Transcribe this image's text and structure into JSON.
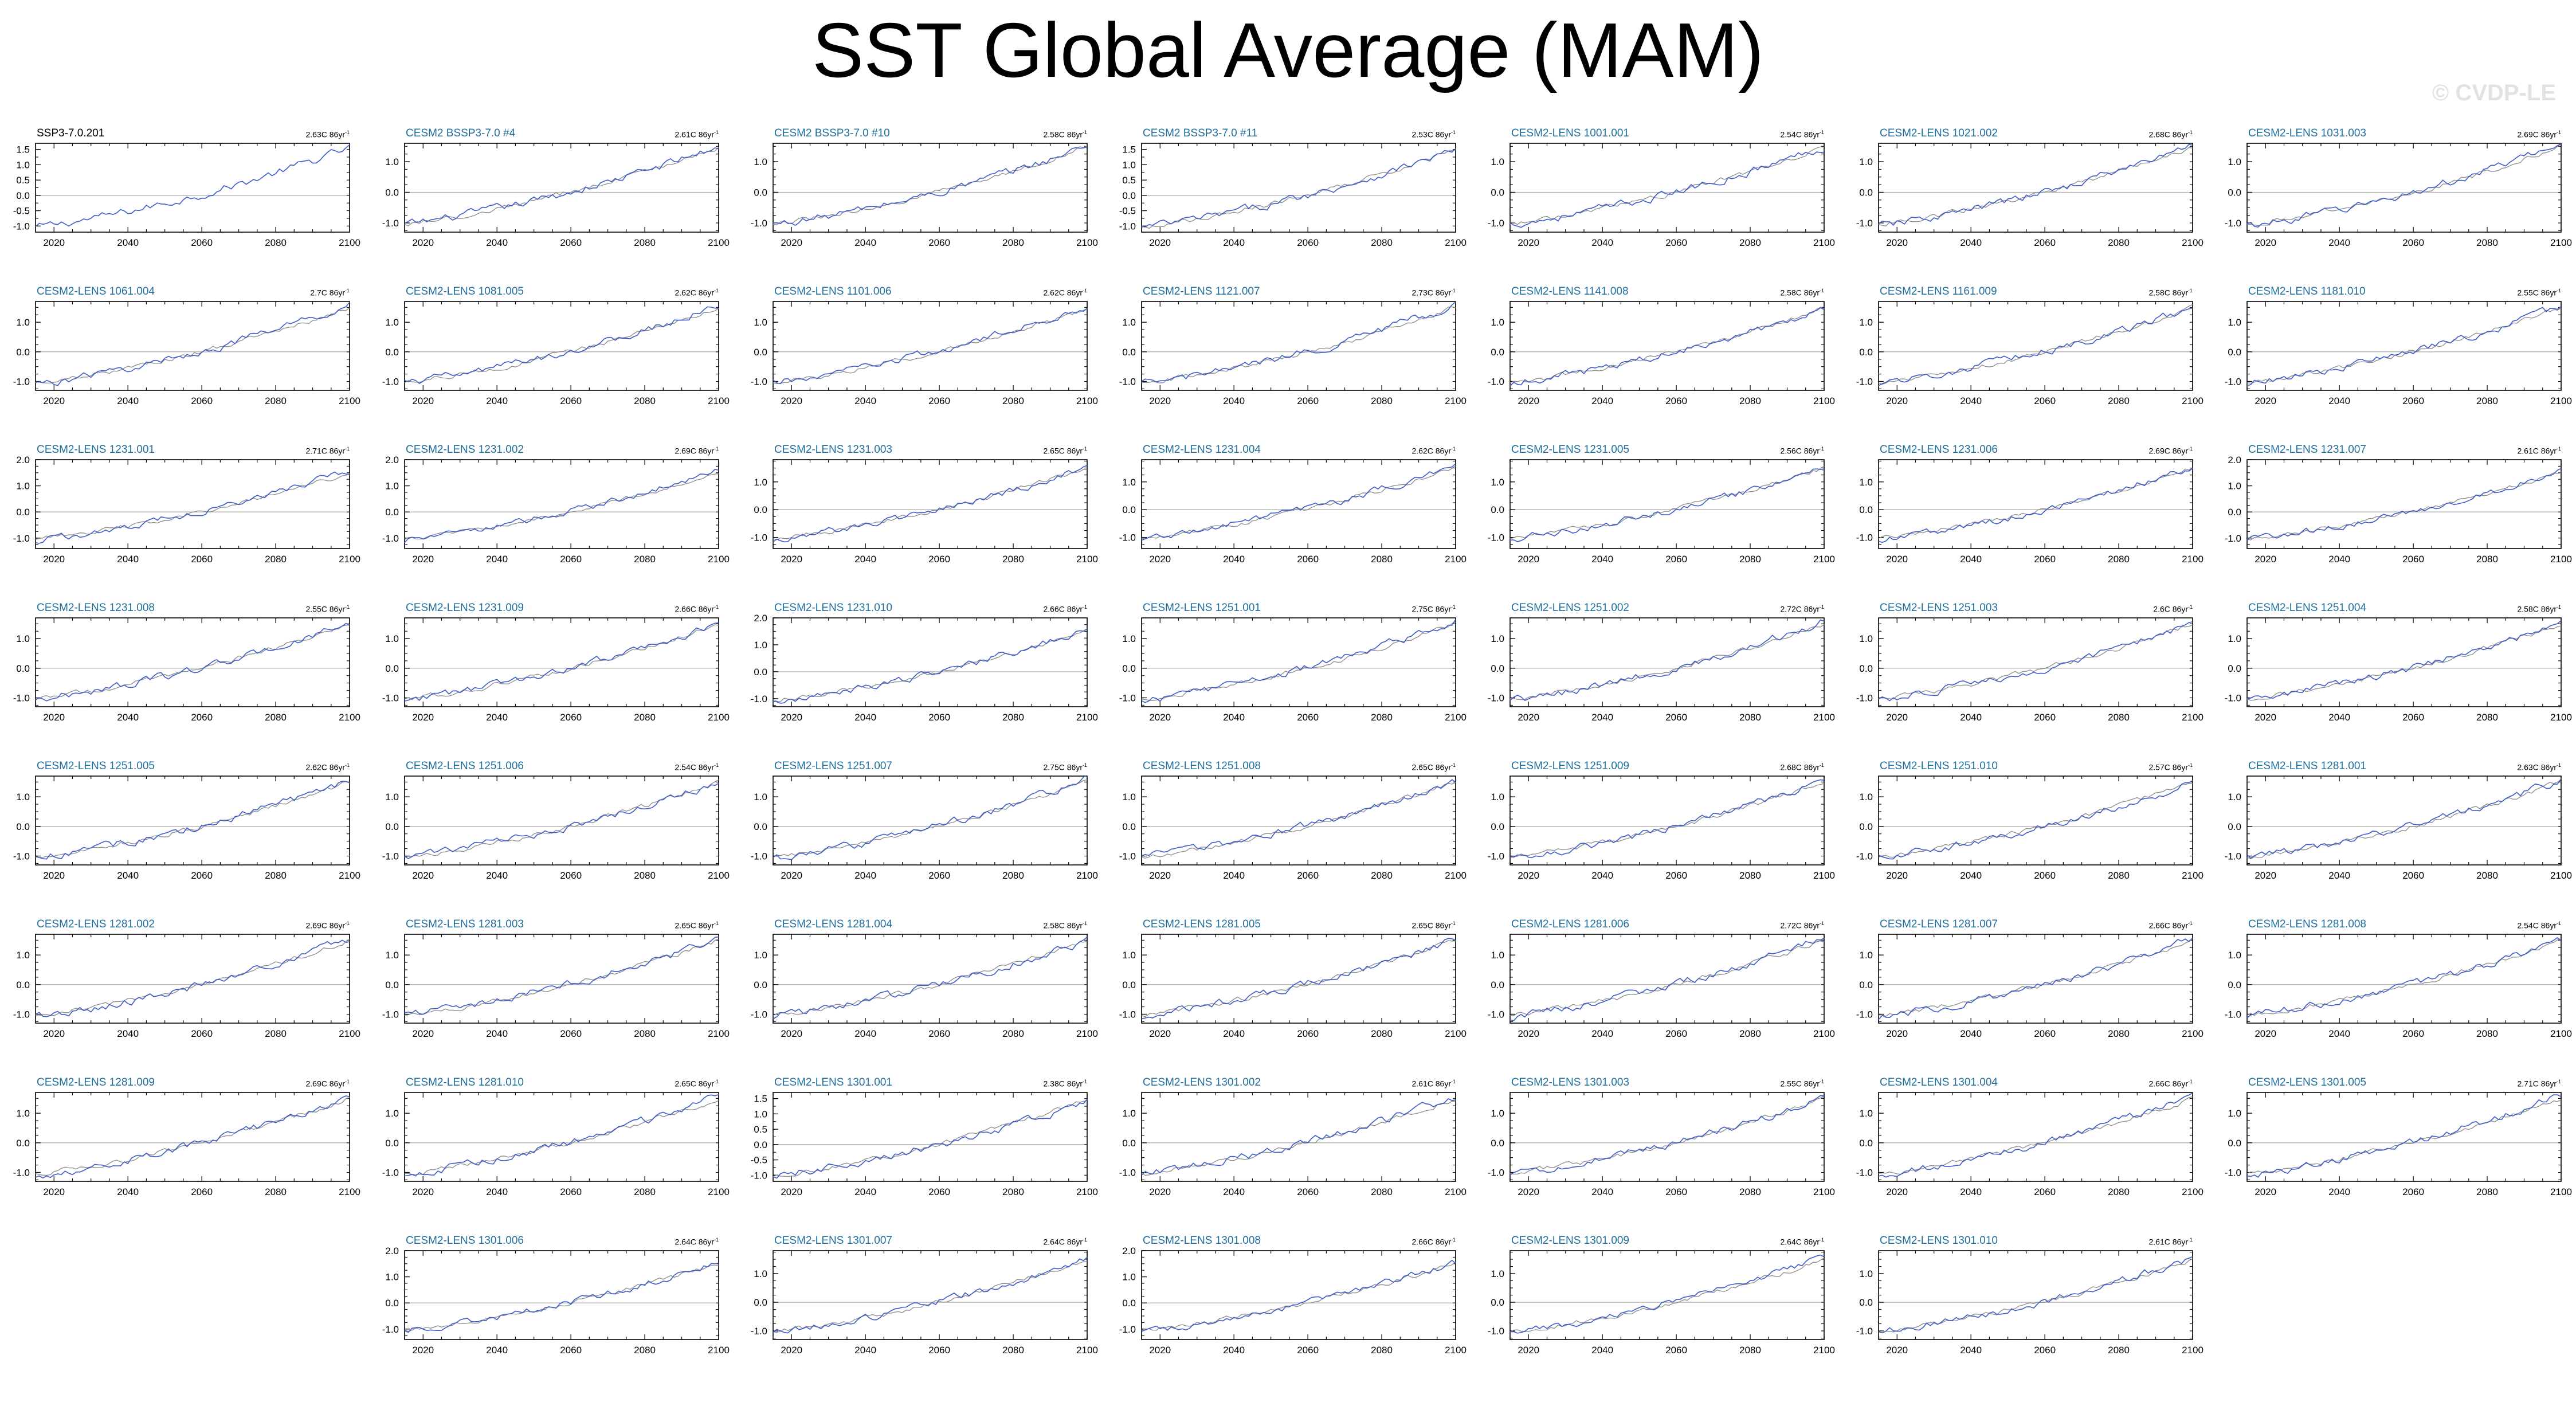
{
  "title": "SST Global Average (MAM)",
  "watermark": "© CVDP-LE",
  "chart_data": {
    "type": "line",
    "layout": "small-multiples grid, 7 columns",
    "xlim": [
      2015,
      2100
    ],
    "xticks": [
      2020,
      2040,
      2060,
      2080,
      2100
    ],
    "x_start": 2015,
    "grid": "horizontal zero line",
    "series_colors": {
      "ensemble_member": "#3b5bc9",
      "reference_ssp3": "#8a8a8a"
    },
    "trend_unit": "C 86yr",
    "trend_exponent": "-1",
    "panels": [
      {
        "name": "SSP3-7.0.201",
        "trend": "2.63C 86yr",
        "kind": "obs",
        "ylim": [
          -1.2,
          1.7
        ],
        "yticks": [
          "-1.0",
          "-0.5",
          "0.0",
          "0.5",
          "1.0",
          "1.5"
        ],
        "y_start": -1.05,
        "y_end": 1.55
      },
      {
        "name": "CESM2 BSSP3-7.0 #4",
        "trend": "2.61C 86yr",
        "ylim": [
          -1.3,
          1.6
        ],
        "yticks": [
          "-1.0",
          "0.0",
          "1.0"
        ],
        "y_start": -1.05,
        "y_end": 1.5
      },
      {
        "name": "CESM2 BSSP3-7.0 #10",
        "trend": "2.58C 86yr",
        "ylim": [
          -1.3,
          1.6
        ],
        "yticks": [
          "-1.0",
          "0.0",
          "1.0"
        ],
        "y_start": -1.05,
        "y_end": 1.5
      },
      {
        "name": "CESM2 BSSP3-7.0 #11",
        "trend": "2.53C 86yr",
        "ylim": [
          -1.2,
          1.7
        ],
        "yticks": [
          "-1.0",
          "-0.5",
          "0.0",
          "0.5",
          "1.0",
          "1.5"
        ],
        "y_start": -1.05,
        "y_end": 1.5
      },
      {
        "name": "CESM2-LENS 1001.001",
        "trend": "2.54C 86yr",
        "ylim": [
          -1.3,
          1.6
        ],
        "yticks": [
          "-1.0",
          "0.0",
          "1.0"
        ],
        "y_start": -1.05,
        "y_end": 1.5
      },
      {
        "name": "CESM2-LENS 1021.002",
        "trend": "2.68C 86yr",
        "ylim": [
          -1.3,
          1.6
        ],
        "yticks": [
          "-1.0",
          "0.0",
          "1.0"
        ],
        "y_start": -1.1,
        "y_end": 1.55
      },
      {
        "name": "CESM2-LENS 1031.003",
        "trend": "2.69C 86yr",
        "ylim": [
          -1.3,
          1.6
        ],
        "yticks": [
          "-1.0",
          "0.0",
          "1.0"
        ],
        "y_start": -1.1,
        "y_end": 1.55
      },
      {
        "name": "CESM2-LENS 1061.004",
        "trend": "2.7C 86yr",
        "ylim": [
          -1.3,
          1.7
        ],
        "yticks": [
          "-1.0",
          "0.0",
          "1.0"
        ],
        "y_start": -1.1,
        "y_end": 1.6
      },
      {
        "name": "CESM2-LENS 1081.005",
        "trend": "2.62C 86yr",
        "ylim": [
          -1.3,
          1.7
        ],
        "yticks": [
          "-1.0",
          "0.0",
          "1.0"
        ],
        "y_start": -1.05,
        "y_end": 1.55
      },
      {
        "name": "CESM2-LENS 1101.006",
        "trend": "2.62C 86yr",
        "ylim": [
          -1.3,
          1.7
        ],
        "yticks": [
          "-1.0",
          "0.0",
          "1.0"
        ],
        "y_start": -1.05,
        "y_end": 1.55
      },
      {
        "name": "CESM2-LENS 1121.007",
        "trend": "2.73C 86yr",
        "ylim": [
          -1.3,
          1.7
        ],
        "yticks": [
          "-1.0",
          "0.0",
          "1.0"
        ],
        "y_start": -1.1,
        "y_end": 1.6
      },
      {
        "name": "CESM2-LENS 1141.008",
        "trend": "2.58C 86yr",
        "ylim": [
          -1.3,
          1.7
        ],
        "yticks": [
          "-1.0",
          "0.0",
          "1.0"
        ],
        "y_start": -1.05,
        "y_end": 1.5
      },
      {
        "name": "CESM2-LENS 1161.009",
        "trend": "2.58C 86yr",
        "ylim": [
          -1.3,
          1.7
        ],
        "yticks": [
          "-1.0",
          "0.0",
          "1.0"
        ],
        "y_start": -1.05,
        "y_end": 1.5
      },
      {
        "name": "CESM2-LENS 1181.010",
        "trend": "2.55C 86yr",
        "ylim": [
          -1.3,
          1.7
        ],
        "yticks": [
          "-1.0",
          "0.0",
          "1.0"
        ],
        "y_start": -1.05,
        "y_end": 1.5
      },
      {
        "name": "CESM2-LENS 1231.001",
        "trend": "2.71C 86yr",
        "ylim": [
          -1.4,
          2.0
        ],
        "yticks": [
          "-1.0",
          "0.0",
          "1.0",
          "2.0"
        ],
        "y_start": -1.1,
        "y_end": 1.6
      },
      {
        "name": "CESM2-LENS 1231.002",
        "trend": "2.69C 86yr",
        "ylim": [
          -1.4,
          2.0
        ],
        "yticks": [
          "-1.0",
          "0.0",
          "1.0",
          "2.0"
        ],
        "y_start": -1.1,
        "y_end": 1.6
      },
      {
        "name": "CESM2-LENS 1231.003",
        "trend": "2.65C 86yr",
        "ylim": [
          -1.4,
          1.8
        ],
        "yticks": [
          "-1.0",
          "0.0",
          "1.0"
        ],
        "y_start": -1.1,
        "y_end": 1.55
      },
      {
        "name": "CESM2-LENS 1231.004",
        "trend": "2.62C 86yr",
        "ylim": [
          -1.4,
          1.8
        ],
        "yticks": [
          "-1.0",
          "0.0",
          "1.0"
        ],
        "y_start": -1.05,
        "y_end": 1.55
      },
      {
        "name": "CESM2-LENS 1231.005",
        "trend": "2.56C 86yr",
        "ylim": [
          -1.4,
          1.8
        ],
        "yticks": [
          "-1.0",
          "0.0",
          "1.0"
        ],
        "y_start": -1.05,
        "y_end": 1.5
      },
      {
        "name": "CESM2-LENS 1231.006",
        "trend": "2.69C 86yr",
        "ylim": [
          -1.4,
          1.8
        ],
        "yticks": [
          "-1.0",
          "0.0",
          "1.0"
        ],
        "y_start": -1.1,
        "y_end": 1.55
      },
      {
        "name": "CESM2-LENS 1231.007",
        "trend": "2.61C 86yr",
        "ylim": [
          -1.4,
          2.0
        ],
        "yticks": [
          "-1.0",
          "0.0",
          "1.0",
          "2.0"
        ],
        "y_start": -1.05,
        "y_end": 1.55
      },
      {
        "name": "CESM2-LENS 1231.008",
        "trend": "2.55C 86yr",
        "ylim": [
          -1.3,
          1.7
        ],
        "yticks": [
          "-1.0",
          "0.0",
          "1.0"
        ],
        "y_start": -1.05,
        "y_end": 1.5
      },
      {
        "name": "CESM2-LENS 1231.009",
        "trend": "2.66C 86yr",
        "ylim": [
          -1.3,
          1.7
        ],
        "yticks": [
          "-1.0",
          "0.0",
          "1.0"
        ],
        "y_start": -1.1,
        "y_end": 1.55
      },
      {
        "name": "CESM2-LENS 1231.010",
        "trend": "2.66C 86yr",
        "ylim": [
          -1.3,
          2.0
        ],
        "yticks": [
          "-1.0",
          "0.0",
          "1.0",
          "2.0"
        ],
        "y_start": -1.1,
        "y_end": 1.55
      },
      {
        "name": "CESM2-LENS 1251.001",
        "trend": "2.75C 86yr",
        "ylim": [
          -1.3,
          1.7
        ],
        "yticks": [
          "-1.0",
          "0.0",
          "1.0"
        ],
        "y_start": -1.1,
        "y_end": 1.6
      },
      {
        "name": "CESM2-LENS 1251.002",
        "trend": "2.72C 86yr",
        "ylim": [
          -1.3,
          1.7
        ],
        "yticks": [
          "-1.0",
          "0.0",
          "1.0"
        ],
        "y_start": -1.1,
        "y_end": 1.6
      },
      {
        "name": "CESM2-LENS 1251.003",
        "trend": "2.6C 86yr",
        "ylim": [
          -1.3,
          1.7
        ],
        "yticks": [
          "-1.0",
          "0.0",
          "1.0"
        ],
        "y_start": -1.05,
        "y_end": 1.5
      },
      {
        "name": "CESM2-LENS 1251.004",
        "trend": "2.58C 86yr",
        "ylim": [
          -1.3,
          1.7
        ],
        "yticks": [
          "-1.0",
          "0.0",
          "1.0"
        ],
        "y_start": -1.05,
        "y_end": 1.5
      },
      {
        "name": "CESM2-LENS 1251.005",
        "trend": "2.62C 86yr",
        "ylim": [
          -1.3,
          1.7
        ],
        "yticks": [
          "-1.0",
          "0.0",
          "1.0"
        ],
        "y_start": -1.05,
        "y_end": 1.55
      },
      {
        "name": "CESM2-LENS 1251.006",
        "trend": "2.54C 86yr",
        "ylim": [
          -1.3,
          1.7
        ],
        "yticks": [
          "-1.0",
          "0.0",
          "1.0"
        ],
        "y_start": -1.05,
        "y_end": 1.5
      },
      {
        "name": "CESM2-LENS 1251.007",
        "trend": "2.75C 86yr",
        "ylim": [
          -1.3,
          1.7
        ],
        "yticks": [
          "-1.0",
          "0.0",
          "1.0"
        ],
        "y_start": -1.1,
        "y_end": 1.6
      },
      {
        "name": "CESM2-LENS 1251.008",
        "trend": "2.65C 86yr",
        "ylim": [
          -1.3,
          1.7
        ],
        "yticks": [
          "-1.0",
          "0.0",
          "1.0"
        ],
        "y_start": -1.05,
        "y_end": 1.55
      },
      {
        "name": "CESM2-LENS 1251.009",
        "trend": "2.68C 86yr",
        "ylim": [
          -1.3,
          1.7
        ],
        "yticks": [
          "-1.0",
          "0.0",
          "1.0"
        ],
        "y_start": -1.1,
        "y_end": 1.55
      },
      {
        "name": "CESM2-LENS 1251.010",
        "trend": "2.57C 86yr",
        "ylim": [
          -1.3,
          1.7
        ],
        "yticks": [
          "-1.0",
          "0.0",
          "1.0"
        ],
        "y_start": -1.05,
        "y_end": 1.5
      },
      {
        "name": "CESM2-LENS 1281.001",
        "trend": "2.63C 86yr",
        "ylim": [
          -1.3,
          1.7
        ],
        "yticks": [
          "-1.0",
          "0.0",
          "1.0"
        ],
        "y_start": -1.05,
        "y_end": 1.55
      },
      {
        "name": "CESM2-LENS 1281.002",
        "trend": "2.69C 86yr",
        "ylim": [
          -1.3,
          1.7
        ],
        "yticks": [
          "-1.0",
          "0.0",
          "1.0"
        ],
        "y_start": -1.1,
        "y_end": 1.55
      },
      {
        "name": "CESM2-LENS 1281.003",
        "trend": "2.65C 86yr",
        "ylim": [
          -1.3,
          1.7
        ],
        "yticks": [
          "-1.0",
          "0.0",
          "1.0"
        ],
        "y_start": -1.05,
        "y_end": 1.55
      },
      {
        "name": "CESM2-LENS 1281.004",
        "trend": "2.58C 86yr",
        "ylim": [
          -1.3,
          1.7
        ],
        "yticks": [
          "-1.0",
          "0.0",
          "1.0"
        ],
        "y_start": -1.05,
        "y_end": 1.5
      },
      {
        "name": "CESM2-LENS 1281.005",
        "trend": "2.65C 86yr",
        "ylim": [
          -1.3,
          1.7
        ],
        "yticks": [
          "-1.0",
          "0.0",
          "1.0"
        ],
        "y_start": -1.05,
        "y_end": 1.55
      },
      {
        "name": "CESM2-LENS 1281.006",
        "trend": "2.72C 86yr",
        "ylim": [
          -1.3,
          1.7
        ],
        "yticks": [
          "-1.0",
          "0.0",
          "1.0"
        ],
        "y_start": -1.1,
        "y_end": 1.6
      },
      {
        "name": "CESM2-LENS 1281.007",
        "trend": "2.66C 86yr",
        "ylim": [
          -1.3,
          1.7
        ],
        "yticks": [
          "-1.0",
          "0.0",
          "1.0"
        ],
        "y_start": -1.1,
        "y_end": 1.55
      },
      {
        "name": "CESM2-LENS 1281.008",
        "trend": "2.54C 86yr",
        "ylim": [
          -1.3,
          1.7
        ],
        "yticks": [
          "-1.0",
          "0.0",
          "1.0"
        ],
        "y_start": -1.05,
        "y_end": 1.5
      },
      {
        "name": "CESM2-LENS 1281.009",
        "trend": "2.69C 86yr",
        "ylim": [
          -1.3,
          1.7
        ],
        "yticks": [
          "-1.0",
          "0.0",
          "1.0"
        ],
        "y_start": -1.1,
        "y_end": 1.55
      },
      {
        "name": "CESM2-LENS 1281.010",
        "trend": "2.65C 86yr",
        "ylim": [
          -1.3,
          1.7
        ],
        "yticks": [
          "-1.0",
          "0.0",
          "1.0"
        ],
        "y_start": -1.05,
        "y_end": 1.55
      },
      {
        "name": "CESM2-LENS 1301.001",
        "trend": "2.38C 86yr",
        "ylim": [
          -1.2,
          1.7
        ],
        "yticks": [
          "-1.0",
          "-0.5",
          "0.0",
          "0.5",
          "1.0",
          "1.5"
        ],
        "y_start": -1.0,
        "y_end": 1.4
      },
      {
        "name": "CESM2-LENS 1301.002",
        "trend": "2.61C 86yr",
        "ylim": [
          -1.3,
          1.7
        ],
        "yticks": [
          "-1.0",
          "0.0",
          "1.0"
        ],
        "y_start": -1.05,
        "y_end": 1.55
      },
      {
        "name": "CESM2-LENS 1301.003",
        "trend": "2.55C 86yr",
        "ylim": [
          -1.3,
          1.7
        ],
        "yticks": [
          "-1.0",
          "0.0",
          "1.0"
        ],
        "y_start": -1.05,
        "y_end": 1.5
      },
      {
        "name": "CESM2-LENS 1301.004",
        "trend": "2.66C 86yr",
        "ylim": [
          -1.3,
          1.7
        ],
        "yticks": [
          "-1.0",
          "0.0",
          "1.0"
        ],
        "y_start": -1.1,
        "y_end": 1.55
      },
      {
        "name": "CESM2-LENS 1301.005",
        "trend": "2.71C 86yr",
        "ylim": [
          -1.3,
          1.7
        ],
        "yticks": [
          "-1.0",
          "0.0",
          "1.0"
        ],
        "y_start": -1.1,
        "y_end": 1.6
      },
      {
        "name": "CESM2-LENS 1301.006",
        "trend": "2.64C 86yr",
        "ylim": [
          -1.4,
          2.0
        ],
        "yticks": [
          "-1.0",
          "0.0",
          "1.0",
          "2.0"
        ],
        "y_start": -1.05,
        "y_end": 1.55
      },
      {
        "name": "CESM2-LENS 1301.007",
        "trend": "2.64C 86yr",
        "ylim": [
          -1.3,
          1.8
        ],
        "yticks": [
          "-1.0",
          "0.0",
          "1.0"
        ],
        "y_start": -1.05,
        "y_end": 1.55
      },
      {
        "name": "CESM2-LENS 1301.008",
        "trend": "2.66C 86yr",
        "ylim": [
          -1.4,
          2.0
        ],
        "yticks": [
          "-1.0",
          "0.0",
          "1.0",
          "2.0"
        ],
        "y_start": -1.1,
        "y_end": 1.55
      },
      {
        "name": "CESM2-LENS 1301.009",
        "trend": "2.64C 86yr",
        "ylim": [
          -1.3,
          1.8
        ],
        "yticks": [
          "-1.0",
          "0.0",
          "1.0"
        ],
        "y_start": -1.05,
        "y_end": 1.55
      },
      {
        "name": "CESM2-LENS 1301.010",
        "trend": "2.61C 86yr",
        "ylim": [
          -1.3,
          1.8
        ],
        "yticks": [
          "-1.0",
          "0.0",
          "1.0"
        ],
        "y_start": -1.05,
        "y_end": 1.55
      }
    ]
  }
}
